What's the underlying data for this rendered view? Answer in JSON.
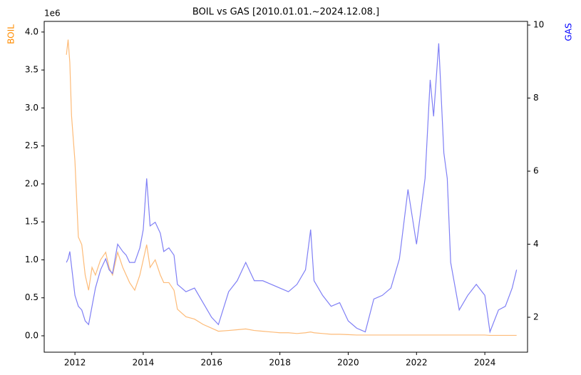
{
  "chart_data": {
    "type": "line",
    "title": "BOIL vs GAS [2010.01.01.~2024.12.08.]",
    "y_label": "BOIL",
    "y2_label": "GAS",
    "y_offset_label": "1e6",
    "x": [
      2011.75,
      2011.8,
      2011.85,
      2011.9,
      2012.0,
      2012.1,
      2012.2,
      2012.3,
      2012.4,
      2012.5,
      2012.6,
      2012.75,
      2012.9,
      2013.0,
      2013.1,
      2013.25,
      2013.4,
      2013.5,
      2013.6,
      2013.75,
      2013.9,
      2014.0,
      2014.1,
      2014.2,
      2014.35,
      2014.5,
      2014.6,
      2014.75,
      2014.9,
      2015.0,
      2015.25,
      2015.5,
      2015.75,
      2016.0,
      2016.2,
      2016.5,
      2016.75,
      2017.0,
      2017.25,
      2017.5,
      2017.75,
      2018.0,
      2018.25,
      2018.5,
      2018.75,
      2018.9,
      2019.0,
      2019.25,
      2019.5,
      2019.75,
      2020.0,
      2020.25,
      2020.5,
      2020.75,
      2021.0,
      2021.25,
      2021.5,
      2021.75,
      2022.0,
      2022.25,
      2022.4,
      2022.5,
      2022.65,
      2022.8,
      2022.9,
      2023.0,
      2023.25,
      2023.5,
      2023.75,
      2024.0,
      2024.15,
      2024.4,
      2024.6,
      2024.8,
      2024.93
    ],
    "series": [
      {
        "name": "BOIL",
        "color": "#fdbb78",
        "axis": "y",
        "values": [
          3.7,
          3.9,
          3.6,
          2.9,
          2.3,
          1.3,
          1.2,
          0.8,
          0.6,
          0.9,
          0.8,
          1.0,
          1.1,
          0.9,
          0.8,
          1.1,
          0.9,
          0.8,
          0.7,
          0.6,
          0.8,
          1.0,
          1.2,
          0.9,
          1.0,
          0.8,
          0.7,
          0.7,
          0.6,
          0.35,
          0.25,
          0.22,
          0.15,
          0.1,
          0.06,
          0.07,
          0.08,
          0.09,
          0.07,
          0.06,
          0.05,
          0.04,
          0.04,
          0.03,
          0.04,
          0.05,
          0.04,
          0.03,
          0.02,
          0.02,
          0.015,
          0.01,
          0.01,
          0.01,
          0.01,
          0.01,
          0.01,
          0.01,
          0.01,
          0.01,
          0.01,
          0.01,
          0.01,
          0.01,
          0.01,
          0.01,
          0.01,
          0.01,
          0.01,
          0.01,
          0.005,
          0.005,
          0.005,
          0.005,
          0.005
        ]
      },
      {
        "name": "GAS",
        "color": "#7f7ff5",
        "axis": "y2",
        "values": [
          3.5,
          3.6,
          3.8,
          3.4,
          2.6,
          2.3,
          2.2,
          1.9,
          1.8,
          2.3,
          2.8,
          3.3,
          3.6,
          3.3,
          3.2,
          4.0,
          3.8,
          3.7,
          3.5,
          3.5,
          3.9,
          4.4,
          5.8,
          4.5,
          4.6,
          4.3,
          3.8,
          3.9,
          3.7,
          2.9,
          2.7,
          2.8,
          2.4,
          2.0,
          1.8,
          2.7,
          3.0,
          3.5,
          3.0,
          3.0,
          2.9,
          2.8,
          2.7,
          2.9,
          3.3,
          4.4,
          3.0,
          2.6,
          2.3,
          2.4,
          1.9,
          1.7,
          1.6,
          2.5,
          2.6,
          2.8,
          3.6,
          5.5,
          4.0,
          5.8,
          8.5,
          7.5,
          9.5,
          6.5,
          5.8,
          3.5,
          2.2,
          2.6,
          2.9,
          2.6,
          1.6,
          2.2,
          2.3,
          2.8,
          3.3
        ]
      }
    ],
    "xlim": [
      2011.1,
      2025.25
    ],
    "xticks": [
      2012,
      2014,
      2016,
      2018,
      2020,
      2022,
      2024
    ],
    "ylim": [
      -0.216,
      4.14
    ],
    "yticks": [
      {
        "value": 0,
        "label": "0.0"
      },
      0.5,
      {
        "value": 1,
        "label": "1.0"
      },
      1.5,
      {
        "value": 2,
        "label": "2.0"
      },
      2.5,
      {
        "value": 3,
        "label": "3.0"
      },
      3.5,
      {
        "value": 4,
        "label": "4.0"
      }
    ],
    "y2lim": [
      1.044,
      10.1
    ],
    "y2ticks": [
      2,
      4,
      6,
      8,
      10
    ],
    "grid": false
  }
}
